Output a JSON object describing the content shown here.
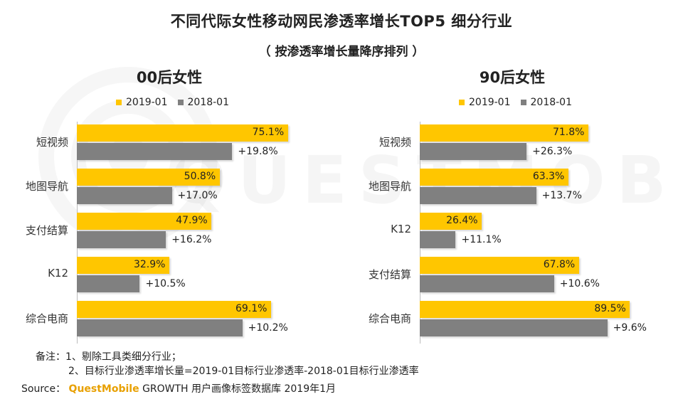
{
  "header": {
    "title": "不同代际女性移动网民渗透率增长TOP5 细分行业",
    "subtitle": "（ 按渗透率增长量降序排列 ）"
  },
  "colors": {
    "y2019": "#FFC600",
    "y2018": "#808080"
  },
  "chart_data": [
    {
      "type": "bar",
      "orientation": "horizontal",
      "title": "00后女性",
      "legend": [
        "2019-01",
        "2018-01"
      ],
      "legend_position": "top",
      "categories": [
        "短视频",
        "地图导航",
        "支付结算",
        "K12",
        "综合电商"
      ],
      "series": [
        {
          "name": "2019-01",
          "values": [
            75.1,
            50.8,
            47.9,
            32.9,
            69.1
          ],
          "labels": [
            "75.1%",
            "50.8%",
            "47.9%",
            "32.9%",
            "69.1%"
          ]
        },
        {
          "name": "2018-01",
          "values": [
            55.3,
            33.8,
            31.7,
            22.4,
            58.9
          ]
        }
      ],
      "growth_labels": [
        "+19.8%",
        "+17.0%",
        "+16.2%",
        "+10.5%",
        "+10.2%"
      ],
      "xlim": [
        0,
        100
      ]
    },
    {
      "type": "bar",
      "orientation": "horizontal",
      "title": "90后女性",
      "legend": [
        "2019-01",
        "2018-01"
      ],
      "legend_position": "top",
      "categories": [
        "短视频",
        "地图导航",
        "K12",
        "支付结算",
        "综合电商"
      ],
      "series": [
        {
          "name": "2019-01",
          "values": [
            71.8,
            63.3,
            26.4,
            67.8,
            89.5
          ],
          "labels": [
            "71.8%",
            "63.3%",
            "26.4%",
            "67.8%",
            "89.5%"
          ]
        },
        {
          "name": "2018-01",
          "values": [
            45.5,
            49.6,
            15.3,
            57.2,
            79.9
          ]
        }
      ],
      "growth_labels": [
        "+26.3%",
        "+13.7%",
        "+11.1%",
        "+10.6%",
        "+9.6%"
      ],
      "xlim": [
        0,
        100
      ]
    }
  ],
  "notes": {
    "line1": "备注：1、剔除工具类细分行业；",
    "line2": "2、目标行业渗透率增长量=2019-01目标行业渗透率-2018-01目标行业渗透率"
  },
  "source": {
    "prefix": "Source：",
    "brand": "QuestMobile",
    "text": "GROWTH 用户画像标签数据库 2019年1月"
  },
  "watermark": "QUESTMOBILE"
}
